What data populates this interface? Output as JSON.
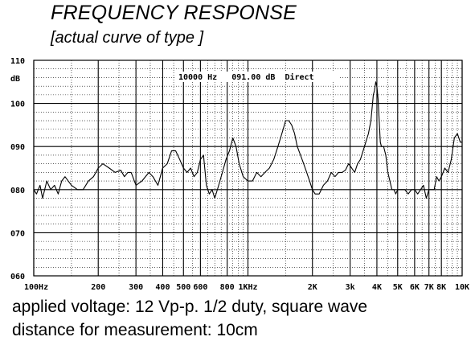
{
  "title": "FREQUENCY RESPONSE",
  "subtitle": "[actual curve of type ]",
  "notes": [
    "applied voltage: 12 Vp-p. 1/2 duty, square wave",
    "distance for measurement: 10cm"
  ],
  "chart_data": {
    "type": "line",
    "title": "FREQUENCY RESPONSE",
    "subtitle": "[actual curve of type ]",
    "xlabel": "",
    "ylabel": "dB",
    "x_scale": "log",
    "xlim": [
      100,
      10000
    ],
    "ylim": [
      60,
      110
    ],
    "grid": true,
    "readout": "10000 Hz   091.00 dB  Direct",
    "x_ticks": [
      {
        "value": 100,
        "label": "100Hz"
      },
      {
        "value": 200,
        "label": "200"
      },
      {
        "value": 300,
        "label": "300"
      },
      {
        "value": 400,
        "label": "400"
      },
      {
        "value": 500,
        "label": "500"
      },
      {
        "value": 600,
        "label": "600"
      },
      {
        "value": 800,
        "label": "800"
      },
      {
        "value": 1000,
        "label": "1KHz"
      },
      {
        "value": 2000,
        "label": "2K"
      },
      {
        "value": 3000,
        "label": "3k"
      },
      {
        "value": 4000,
        "label": "4K"
      },
      {
        "value": 5000,
        "label": "5K"
      },
      {
        "value": 6000,
        "label": "6K"
      },
      {
        "value": 7000,
        "label": "7K"
      },
      {
        "value": 8000,
        "label": "8K"
      },
      {
        "value": 10000,
        "label": "10K"
      }
    ],
    "y_ticks": [
      {
        "value": 110,
        "label": "110"
      },
      {
        "value": 100,
        "label": "100"
      },
      {
        "value": 90,
        "label": "090"
      },
      {
        "value": 80,
        "label": "080"
      },
      {
        "value": 70,
        "label": "070"
      },
      {
        "value": 60,
        "label": "060"
      }
    ],
    "series": [
      {
        "x": [
          100,
          103,
          107,
          110,
          115,
          120,
          125,
          130,
          135,
          140,
          150,
          160,
          170,
          180,
          190,
          200,
          210,
          225,
          240,
          255,
          265,
          275,
          285,
          300,
          320,
          345,
          360,
          380,
          400,
          420,
          440,
          460,
          480,
          500,
          520,
          540,
          560,
          580,
          600,
          620,
          640,
          660,
          680,
          700,
          730,
          760,
          790,
          820,
          850,
          880,
          910,
          950,
          1000,
          1050,
          1100,
          1150,
          1200,
          1260,
          1320,
          1380,
          1440,
          1500,
          1550,
          1600,
          1650,
          1700,
          1760,
          1820,
          1880,
          1940,
          2000,
          2060,
          2150,
          2250,
          2350,
          2450,
          2550,
          2650,
          2750,
          2850,
          2950,
          3050,
          3150,
          3250,
          3350,
          3450,
          3550,
          3650,
          3750,
          3800,
          3850,
          3900,
          3950,
          4000,
          4050,
          4100,
          4150,
          4200,
          4300,
          4400,
          4500,
          4600,
          4700,
          4800,
          4900,
          5000,
          5200,
          5400,
          5600,
          5800,
          6000,
          6200,
          6400,
          6600,
          6800,
          7000,
          7200,
          7400,
          7600,
          7800,
          8000,
          8300,
          8600,
          8900,
          9200,
          9500,
          9800,
          10000
        ],
        "y": [
          80,
          79,
          81,
          78,
          82,
          80,
          81,
          79,
          82,
          83,
          81,
          80,
          80,
          82,
          83,
          85,
          86,
          85,
          84,
          84.5,
          83,
          84,
          84,
          81,
          82,
          84,
          83,
          81,
          85,
          86,
          89,
          89,
          87,
          85,
          84,
          85,
          83,
          84,
          87,
          88,
          81,
          79,
          80,
          78,
          81,
          84,
          87,
          89,
          92,
          90,
          86,
          83,
          82,
          82,
          84,
          83,
          84,
          85,
          87,
          90,
          93,
          96,
          96,
          95,
          93,
          90,
          88,
          86,
          84,
          82,
          80,
          79,
          79,
          81,
          82,
          84,
          83,
          84,
          84,
          84.5,
          86,
          85,
          84,
          86,
          87,
          89,
          91,
          93,
          96,
          99,
          102,
          103,
          105,
          104,
          101,
          96,
          91,
          90,
          90,
          88,
          84,
          82,
          80,
          80,
          79,
          80,
          80,
          80,
          79,
          80,
          80,
          79,
          80,
          81,
          78,
          80,
          80,
          80,
          83,
          82,
          83,
          85,
          84,
          87,
          92,
          93,
          91,
          91
        ]
      }
    ]
  }
}
